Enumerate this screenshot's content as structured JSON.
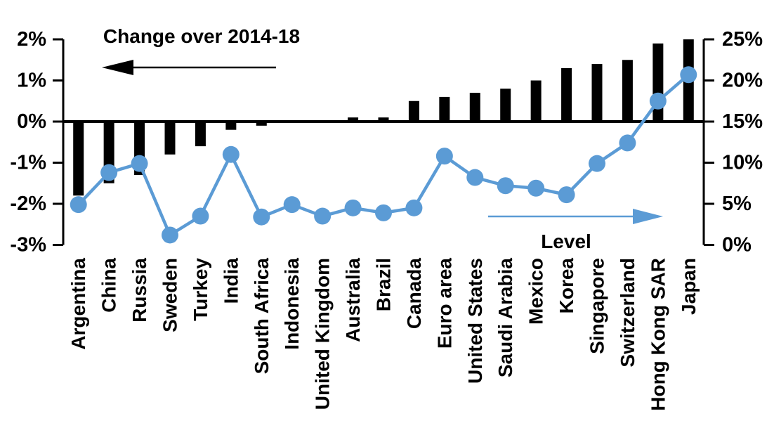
{
  "chart_data": {
    "type": "bar",
    "subtype": "dual-axis bar + line",
    "background": "#ffffff",
    "categories": [
      "Argentina",
      "China",
      "Russia",
      "Sweden",
      "Turkey",
      "India",
      "South Africa",
      "Indonesia",
      "United Kingdom",
      "Australia",
      "Brazil",
      "Canada",
      "Euro area",
      "United States",
      "Saudi Arabia",
      "Mexico",
      "Korea",
      "Singapore",
      "Switzerland",
      "Hong Kong SAR",
      "Japan"
    ],
    "series": [
      {
        "name": "Change over 2014-18",
        "type": "bar",
        "axis": "left",
        "color": "#000000",
        "values": [
          -1.8,
          -1.5,
          -1.3,
          -0.8,
          -0.6,
          -0.2,
          -0.1,
          0,
          0,
          0.1,
          0.1,
          0.5,
          0.6,
          0.7,
          0.8,
          1.0,
          1.3,
          1.4,
          1.5,
          1.9,
          2.0
        ]
      },
      {
        "name": "Level",
        "type": "line",
        "axis": "right",
        "color": "#5B9BD5",
        "values": [
          4.9,
          8.8,
          9.9,
          1.2,
          3.5,
          11.0,
          3.4,
          4.9,
          3.5,
          4.5,
          3.9,
          4.5,
          10.8,
          8.2,
          7.2,
          6.9,
          6.1,
          9.9,
          12.4,
          17.5,
          20.7
        ]
      }
    ],
    "left_axis": {
      "min": -3,
      "max": 2,
      "tick_values": [
        2,
        1,
        0,
        -1,
        -2,
        -3
      ],
      "tick_labels": [
        "2%",
        "1%",
        "0%",
        "-1%",
        "-2%",
        "-3%"
      ]
    },
    "right_axis": {
      "min": 0,
      "max": 25,
      "tick_values": [
        25,
        20,
        15,
        10,
        5,
        0
      ],
      "tick_labels": [
        "25%",
        "20%",
        "15%",
        "10%",
        "5%",
        "0%"
      ]
    },
    "grid": false,
    "legend_position": "in-plot annotations",
    "annotations": [
      {
        "label": "Change over 2014-18",
        "arrow_direction": "left",
        "color": "#000000"
      },
      {
        "label": "Level",
        "arrow_direction": "right",
        "color": "#5B9BD5"
      }
    ]
  }
}
